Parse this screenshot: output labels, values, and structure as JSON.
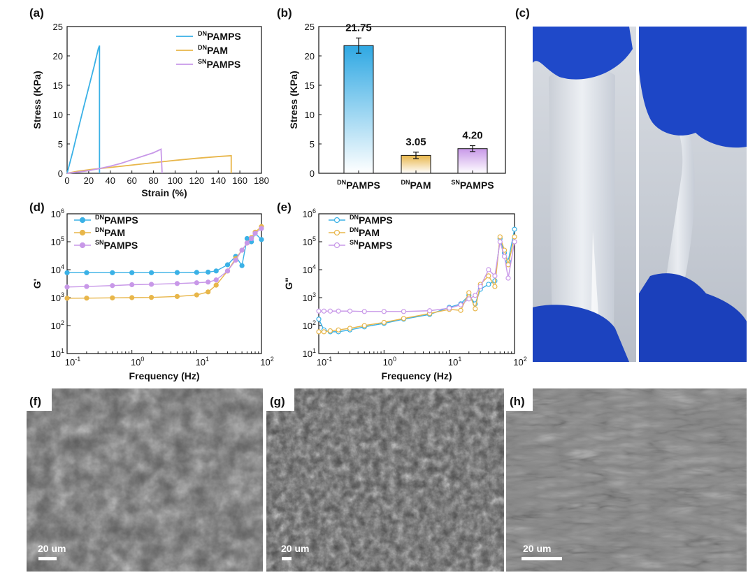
{
  "panel_labels": {
    "a": "(a)",
    "b": "(b)",
    "c": "(c)",
    "d": "(d)",
    "e": "(e)",
    "f": "(f)",
    "g": "(g)",
    "h": "(h)"
  },
  "colors": {
    "dn_pamps": "#3AB1E6",
    "dn_pam": "#E8B64A",
    "sn_pamps": "#C898E8"
  },
  "chart_data": [
    {
      "id": "a",
      "type": "line",
      "xlabel": "Strain (%)",
      "ylabel": "Stress (KPa)",
      "xlim": [
        0,
        180
      ],
      "ylim": [
        0,
        25
      ],
      "xticks": [
        0,
        20,
        40,
        60,
        80,
        100,
        120,
        140,
        160,
        180
      ],
      "yticks": [
        0,
        5,
        10,
        15,
        20,
        25
      ],
      "legend_position": "top-right",
      "series": [
        {
          "sup": "DN",
          "name": "PAMPS",
          "color": "#3AB1E6",
          "x": [
            0,
            5,
            10,
            15,
            20,
            25,
            29,
            30,
            30
          ],
          "y": [
            0,
            3.5,
            7.3,
            11.0,
            14.6,
            18.2,
            21.3,
            21.75,
            0
          ]
        },
        {
          "sup": "DN",
          "name": "PAM",
          "color": "#E8B64A",
          "x": [
            0,
            10,
            20,
            30,
            40,
            60,
            80,
            100,
            120,
            140,
            152,
            152
          ],
          "y": [
            0,
            0.35,
            0.6,
            0.8,
            1.0,
            1.4,
            1.8,
            2.2,
            2.55,
            2.85,
            3.0,
            0
          ]
        },
        {
          "sup": "SN",
          "name": "PAMPS",
          "color": "#C898E8",
          "x": [
            0,
            10,
            20,
            30,
            40,
            50,
            60,
            70,
            80,
            87,
            88
          ],
          "y": [
            0,
            0.2,
            0.45,
            0.8,
            1.2,
            1.7,
            2.3,
            2.9,
            3.5,
            4.1,
            0
          ]
        }
      ]
    },
    {
      "id": "b",
      "type": "bar",
      "ylabel": "Stress (KPa)",
      "ylim": [
        0,
        25
      ],
      "yticks": [
        0,
        5,
        10,
        15,
        20,
        25
      ],
      "categories": [
        {
          "sup": "DN",
          "name": "PAMPS"
        },
        {
          "sup": "DN",
          "name": "PAM"
        },
        {
          "sup": "SN",
          "name": "PAMPS"
        }
      ],
      "values": [
        21.75,
        3.05,
        4.2
      ],
      "errors": [
        1.3,
        0.55,
        0.5
      ],
      "labels": [
        "21.75",
        "3.05",
        "4.20"
      ],
      "colors": [
        "#3AB1E6",
        "#E8B64A",
        "#C898E8"
      ]
    },
    {
      "id": "d",
      "type": "line",
      "scale": "log-log",
      "xlabel": "Frequency (Hz)",
      "ylabel": "G'",
      "xlim_exp": [
        -1,
        2
      ],
      "ylim_exp": [
        1,
        6
      ],
      "marker": "filled-circle",
      "legend_position": "top-left",
      "series": [
        {
          "sup": "DN",
          "name": "PAMPS",
          "color": "#3AB1E6",
          "x": [
            0.1,
            0.2,
            0.5,
            1,
            2,
            5,
            10,
            15,
            20,
            30,
            40,
            50,
            60,
            70,
            80,
            100
          ],
          "y": [
            7800,
            7800,
            7800,
            7800,
            7800,
            7900,
            8000,
            8200,
            9000,
            15000,
            30000,
            14000,
            130000,
            100000,
            200000,
            120000
          ]
        },
        {
          "sup": "DN",
          "name": "PAM",
          "color": "#E8B64A",
          "x": [
            0.1,
            0.2,
            0.5,
            1,
            2,
            5,
            10,
            15,
            20,
            30,
            40,
            50,
            60,
            70,
            80,
            100
          ],
          "y": [
            950,
            960,
            980,
            1000,
            1020,
            1100,
            1250,
            1600,
            2800,
            9000,
            25000,
            50000,
            90000,
            140000,
            220000,
            350000
          ]
        },
        {
          "sup": "SN",
          "name": "PAMPS",
          "color": "#C898E8",
          "x": [
            0.1,
            0.2,
            0.5,
            1,
            2,
            5,
            10,
            15,
            20,
            30,
            40,
            50,
            60,
            70,
            80,
            100
          ],
          "y": [
            2400,
            2500,
            2700,
            2900,
            3000,
            3200,
            3400,
            3600,
            4300,
            9000,
            22000,
            50000,
            90000,
            130000,
            200000,
            300000
          ]
        }
      ]
    },
    {
      "id": "e",
      "type": "line",
      "scale": "log-log",
      "xlabel": "Frequency (Hz)",
      "ylabel": "G\"",
      "xlim_exp": [
        -1,
        2
      ],
      "ylim_exp": [
        1,
        6
      ],
      "marker": "open-circle",
      "legend_position": "top-left",
      "series": [
        {
          "sup": "DN",
          "name": "PAMPS",
          "color": "#3AB1E6",
          "x": [
            0.1,
            0.12,
            0.15,
            0.2,
            0.3,
            0.5,
            1,
            2,
            5,
            10,
            15,
            20,
            25,
            30,
            40,
            50,
            60,
            70,
            80,
            100
          ],
          "y": [
            170,
            70,
            60,
            60,
            70,
            90,
            120,
            170,
            250,
            450,
            600,
            1200,
            600,
            2000,
            3000,
            4000,
            130000,
            40000,
            20000,
            280000
          ]
        },
        {
          "sup": "DN",
          "name": "PAM",
          "color": "#E8B64A",
          "x": [
            0.1,
            0.12,
            0.15,
            0.2,
            0.3,
            0.5,
            1,
            2,
            5,
            10,
            15,
            20,
            25,
            30,
            40,
            50,
            60,
            70,
            80,
            100
          ],
          "y": [
            60,
            60,
            65,
            70,
            80,
            100,
            130,
            180,
            270,
            380,
            350,
            1500,
            400,
            3000,
            6000,
            2500,
            150000,
            50000,
            15000,
            150000
          ]
        },
        {
          "sup": "SN",
          "name": "PAMPS",
          "color": "#C898E8",
          "x": [
            0.1,
            0.12,
            0.15,
            0.2,
            0.3,
            0.5,
            1,
            2,
            5,
            10,
            15,
            20,
            25,
            30,
            40,
            50,
            60,
            70,
            80,
            100
          ],
          "y": [
            330,
            330,
            330,
            330,
            330,
            320,
            320,
            320,
            340,
            420,
            550,
            900,
            1200,
            2500,
            10000,
            6000,
            100000,
            30000,
            5000,
            100000
          ]
        }
      ]
    }
  ],
  "panel_c": {
    "type": "photo"
  },
  "sem": [
    {
      "id": "f",
      "scale_text": "20 um"
    },
    {
      "id": "g",
      "scale_text": "20 um"
    },
    {
      "id": "h",
      "scale_text": "20 um"
    }
  ]
}
